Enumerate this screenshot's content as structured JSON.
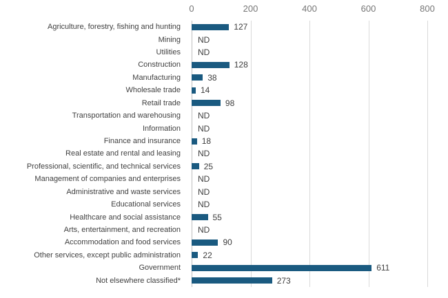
{
  "chart_data": {
    "type": "bar",
    "orientation": "horizontal",
    "title": "",
    "xlabel": "",
    "ylabel": "",
    "xlim": [
      0,
      800
    ],
    "xticks": [
      0,
      200,
      400,
      600,
      800
    ],
    "grid": true,
    "legend": null,
    "no_data_label": "ND",
    "bar_color": "#1a5a80",
    "gridline_color": "#d9d9d9",
    "axis_line_color": "#bdbdbd",
    "tick_text_color": "#757575",
    "label_text_color": "#404040",
    "categories": [
      "Agriculture, forestry, fishing and hunting",
      "Mining",
      "Utilities",
      "Construction",
      "Manufacturing",
      "Wholesale trade",
      "Retail trade",
      "Transportation and warehousing",
      "Information",
      "Finance and insurance",
      "Real estate and rental and leasing",
      "Professional, scientific, and technical services",
      "Management of companies and enterprises",
      "Administrative and waste services",
      "Educational services",
      "Healthcare and social assistance",
      "Arts, entertainment, and recreation",
      "Accommodation and food services",
      "Other services, except public administration",
      "Government",
      "Not elsewhere classified*"
    ],
    "values": [
      127,
      "ND",
      "ND",
      128,
      38,
      14,
      98,
      "ND",
      "ND",
      18,
      "ND",
      25,
      "ND",
      "ND",
      "ND",
      55,
      "ND",
      90,
      22,
      611,
      273
    ]
  }
}
